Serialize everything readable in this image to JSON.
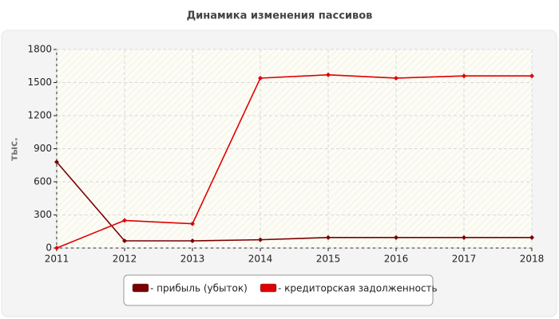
{
  "chart_data": {
    "type": "line",
    "title": "Динамика изменения пассивов",
    "y_label": "тыс.",
    "x": [
      2011,
      2012,
      2013,
      2014,
      2015,
      2016,
      2017,
      2018
    ],
    "xlim": [
      2011,
      2018
    ],
    "xticks": [
      2011,
      2012,
      2013,
      2014,
      2015,
      2016,
      2017,
      2018
    ],
    "ylim": [
      0,
      1800
    ],
    "yticks": [
      0,
      300,
      600,
      900,
      1200,
      1500,
      1800
    ],
    "grid": true,
    "legend": "bottom",
    "series": [
      {
        "name": "- прибыль (убыток)",
        "color": "#7a0000",
        "values": [
          780,
          65,
          65,
          75,
          95,
          95,
          95,
          95
        ]
      },
      {
        "name": "- кредиторская задолженность",
        "color": "#e00000",
        "values": [
          0,
          250,
          220,
          1540,
          1570,
          1540,
          1560,
          1560
        ]
      }
    ]
  }
}
